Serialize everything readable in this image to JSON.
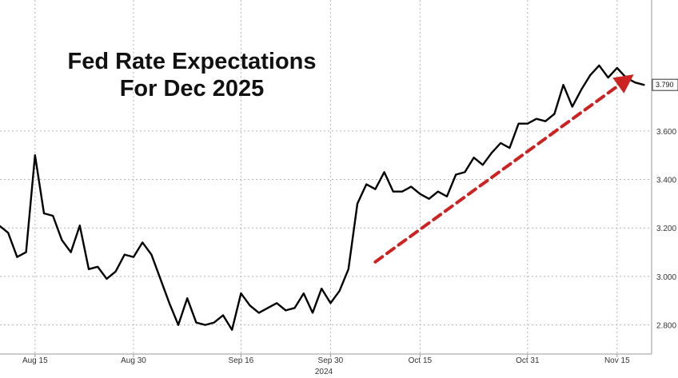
{
  "chart_data": {
    "type": "line",
    "title_lines": [
      "Fed Rate Expectations",
      "For Dec 2025"
    ],
    "xlabel": "",
    "ylabel": "",
    "x_year_label": "2024",
    "x_ticks": [
      "Aug 15",
      "Aug 30",
      "Sep 16",
      "Sep 30",
      "Oct 15",
      "Oct 31",
      "Nov 15"
    ],
    "y_ticks": [
      "2.800",
      "3.000",
      "3.200",
      "3.400",
      "3.600",
      "3.790"
    ],
    "ylim": [
      2.68,
      4.14
    ],
    "last_value_label": "3.790",
    "grid": true,
    "line_color": "#000000",
    "arrow_color": "#cc2222",
    "series": [
      {
        "values": [
          3.21,
          3.18,
          3.08,
          3.1,
          3.5,
          3.26,
          3.25,
          3.15,
          3.1,
          3.21,
          3.03,
          3.04,
          2.99,
          3.02,
          3.09,
          3.08,
          3.14,
          3.09,
          2.99,
          2.89,
          2.8,
          2.91,
          2.81,
          2.8,
          2.81,
          2.84,
          2.78,
          2.93,
          2.88,
          2.85,
          2.87,
          2.89,
          2.86,
          2.87,
          2.93,
          2.85,
          2.95,
          2.89,
          2.94,
          3.03,
          3.3,
          3.38,
          3.36,
          3.43,
          3.35,
          3.35,
          3.37,
          3.34,
          3.32,
          3.35,
          3.33,
          3.42,
          3.43,
          3.49,
          3.46,
          3.51,
          3.55,
          3.53,
          3.63,
          3.63,
          3.65,
          3.64,
          3.67,
          3.79,
          3.7,
          3.77,
          3.83,
          3.87,
          3.82,
          3.86,
          3.82,
          3.8,
          3.79
        ]
      }
    ],
    "trend_arrow": {
      "from": {
        "index": 42,
        "value": 3.06
      },
      "to": {
        "index": 70,
        "value": 3.81
      }
    }
  }
}
